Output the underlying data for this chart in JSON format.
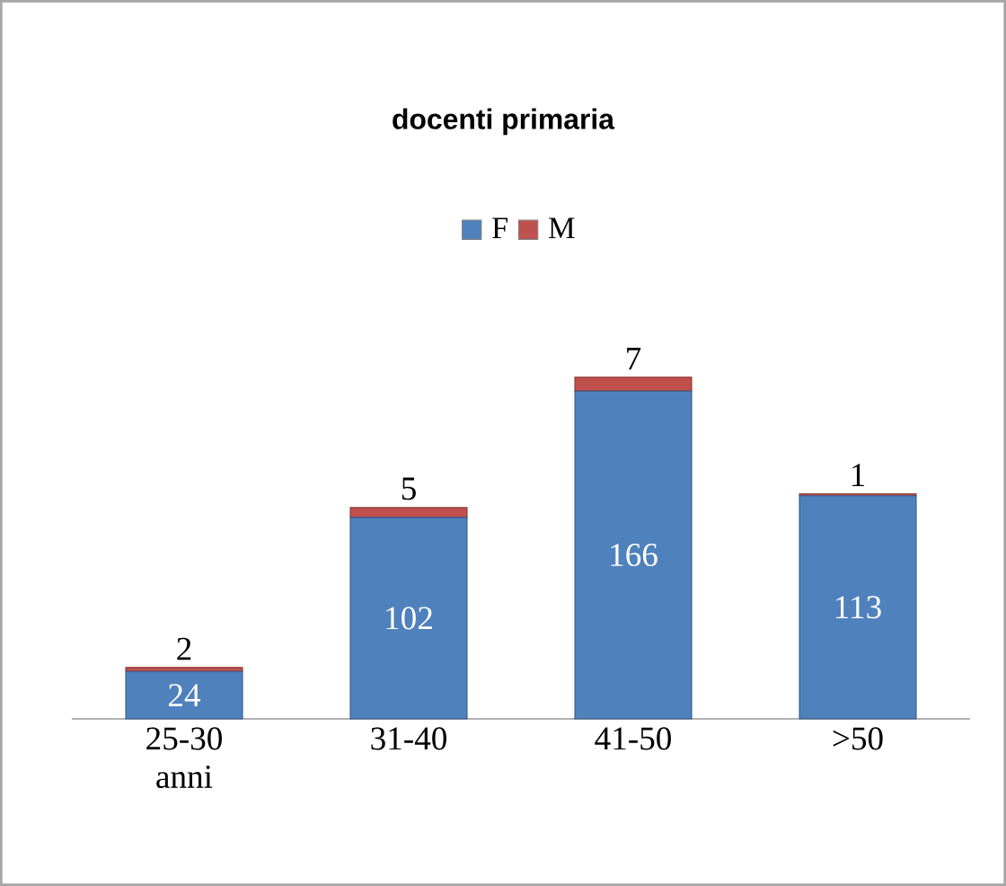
{
  "chart_data": {
    "type": "bar",
    "title": "docenti primaria",
    "categories": [
      "25-30 anni",
      "31-40",
      "41-50",
      ">50"
    ],
    "stacked": true,
    "legend": "top",
    "series": [
      {
        "name": "F",
        "color": "#4f81bd",
        "values": [
          24,
          102,
          166,
          113
        ],
        "value_labels": [
          "24",
          "102",
          "166",
          "113"
        ]
      },
      {
        "name": "M",
        "color": "#c0504d",
        "values": [
          2,
          5,
          7,
          1
        ],
        "value_labels": [
          "2",
          "5",
          "7",
          "1"
        ]
      }
    ]
  }
}
